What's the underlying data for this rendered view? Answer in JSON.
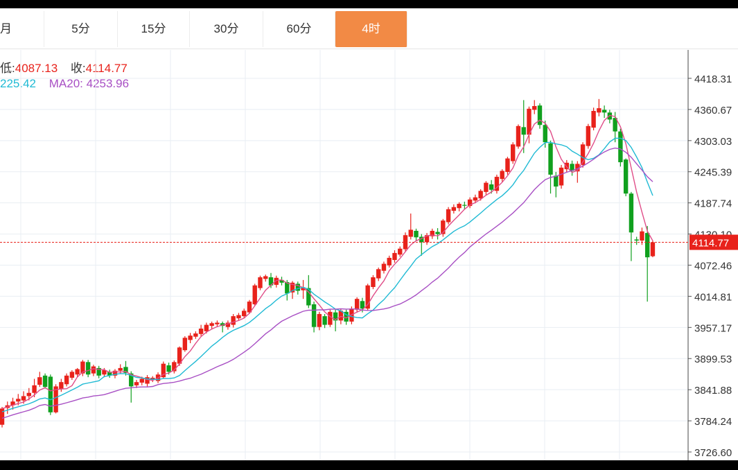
{
  "tabs": [
    {
      "label": "月",
      "active": false
    },
    {
      "label": "5分",
      "active": false
    },
    {
      "label": "15分",
      "active": false
    },
    {
      "label": "30分",
      "active": false
    },
    {
      "label": "60分",
      "active": false
    },
    {
      "label": "4时",
      "active": true
    }
  ],
  "info": {
    "low_label": "低:",
    "low_value": "4087.13",
    "close_label": "收:",
    "close_value": "4114.77",
    "ma10_value_partial": "225.42",
    "ma20_label": "MA20:",
    "ma20_value": "4253.96"
  },
  "colors": {
    "up": "#e8221b",
    "down": "#10a01e",
    "ma5": "#e04d88",
    "ma10": "#1fbad4",
    "ma20": "#a84fc4",
    "grid": "#e8eef3",
    "price_line": "#e8221b",
    "active_tab": "#f28a45"
  },
  "chart_data": {
    "type": "candlestick",
    "y_ticks": [
      "4418.31",
      "4360.67",
      "4303.03",
      "4245.39",
      "4187.74",
      "4130.10",
      "4072.46",
      "4014.81",
      "3957.17",
      "3899.53",
      "3841.88",
      "3784.24",
      "3726.60"
    ],
    "ylim": [
      3726.6,
      4418.31
    ],
    "last_price": "4114.77",
    "grid": true,
    "candles": [
      [
        3777,
        3807,
        3772,
        3810
      ],
      [
        3808,
        3813,
        3797,
        3820
      ],
      [
        3813,
        3820,
        3805,
        3827
      ],
      [
        3820,
        3825,
        3813,
        3834
      ],
      [
        3822,
        3830,
        3816,
        3839
      ],
      [
        3830,
        3836,
        3822,
        3845
      ],
      [
        3836,
        3850,
        3828,
        3862
      ],
      [
        3851,
        3865,
        3847,
        3875
      ],
      [
        3868,
        3847,
        3844,
        3872
      ],
      [
        3866,
        3800,
        3795,
        3870
      ],
      [
        3800,
        3848,
        3798,
        3852
      ],
      [
        3843,
        3856,
        3838,
        3862
      ],
      [
        3852,
        3868,
        3848,
        3872
      ],
      [
        3864,
        3875,
        3860,
        3878
      ],
      [
        3870,
        3880,
        3865,
        3882
      ],
      [
        3872,
        3894,
        3867,
        3897
      ],
      [
        3893,
        3870,
        3865,
        3897
      ],
      [
        3872,
        3885,
        3867,
        3888
      ],
      [
        3882,
        3868,
        3863,
        3886
      ],
      [
        3870,
        3878,
        3865,
        3882
      ],
      [
        3875,
        3868,
        3864,
        3879
      ],
      [
        3868,
        3877,
        3863,
        3880
      ],
      [
        3877,
        3882,
        3872,
        3889
      ],
      [
        3884,
        3873,
        3868,
        3895
      ],
      [
        3872,
        3848,
        3818,
        3876
      ],
      [
        3850,
        3856,
        3845,
        3860
      ],
      [
        3855,
        3862,
        3850,
        3866
      ],
      [
        3853,
        3865,
        3848,
        3869
      ],
      [
        3860,
        3864,
        3856,
        3867
      ],
      [
        3858,
        3870,
        3854,
        3874
      ],
      [
        3865,
        3890,
        3862,
        3894
      ],
      [
        3887,
        3875,
        3870,
        3892
      ],
      [
        3876,
        3893,
        3872,
        3896
      ],
      [
        3890,
        3920,
        3886,
        3922
      ],
      [
        3915,
        3938,
        3912,
        3941
      ],
      [
        3934,
        3942,
        3928,
        3947
      ],
      [
        3940,
        3946,
        3936,
        3950
      ],
      [
        3945,
        3955,
        3940,
        3962
      ],
      [
        3950,
        3962,
        3946,
        3966
      ],
      [
        3960,
        3965,
        3955,
        3968
      ],
      [
        3963,
        3966,
        3958,
        3970
      ],
      [
        3965,
        3960,
        3948,
        3968
      ],
      [
        3958,
        3966,
        3953,
        3970
      ],
      [
        3962,
        3978,
        3957,
        3982
      ],
      [
        3974,
        3980,
        3970,
        3984
      ],
      [
        3978,
        3988,
        3974,
        3992
      ],
      [
        3985,
        4005,
        3982,
        4008
      ],
      [
        4000,
        4035,
        3997,
        4038
      ],
      [
        4030,
        4050,
        4026,
        4053
      ],
      [
        4047,
        4052,
        4042,
        4055
      ],
      [
        4050,
        4035,
        4030,
        4058
      ],
      [
        4036,
        4049,
        4031,
        4053
      ],
      [
        4045,
        4040,
        4035,
        4051
      ],
      [
        4041,
        4020,
        4007,
        4045
      ],
      [
        4022,
        4040,
        4010,
        4043
      ],
      [
        4038,
        4025,
        4018,
        4042
      ],
      [
        4026,
        4030,
        4010,
        4045
      ],
      [
        4030,
        3998,
        3993,
        4054
      ],
      [
        4000,
        3958,
        3948,
        4005
      ],
      [
        3958,
        3982,
        3952,
        3986
      ],
      [
        3978,
        3962,
        3956,
        3982
      ],
      [
        3962,
        3986,
        3958,
        3990
      ],
      [
        3985,
        3970,
        3950,
        3990
      ],
      [
        3970,
        3988,
        3963,
        3992
      ],
      [
        3986,
        3968,
        3962,
        3990
      ],
      [
        3968,
        3992,
        3963,
        3996
      ],
      [
        3990,
        4010,
        3986,
        4013
      ],
      [
        4006,
        3992,
        3985,
        4012
      ],
      [
        3992,
        4035,
        3988,
        4038
      ],
      [
        4032,
        4050,
        4028,
        4054
      ],
      [
        4048,
        4065,
        4043,
        4068
      ],
      [
        4062,
        4075,
        4057,
        4079
      ],
      [
        4072,
        4086,
        4068,
        4090
      ],
      [
        4082,
        4095,
        4077,
        4100
      ],
      [
        4092,
        4103,
        4088,
        4107
      ],
      [
        4102,
        4128,
        4098,
        4133
      ],
      [
        4125,
        4138,
        4120,
        4168
      ],
      [
        4136,
        4124,
        4118,
        4140
      ],
      [
        4125,
        4115,
        4090,
        4130
      ],
      [
        4115,
        4128,
        4110,
        4132
      ],
      [
        4126,
        4136,
        4121,
        4140
      ],
      [
        4134,
        4130,
        4120,
        4141
      ],
      [
        4130,
        4155,
        4125,
        4158
      ],
      [
        4152,
        4176,
        4148,
        4180
      ],
      [
        4173,
        4180,
        4168,
        4185
      ],
      [
        4178,
        4186,
        4172,
        4189
      ],
      [
        4184,
        4183,
        4175,
        4190
      ],
      [
        4182,
        4194,
        4178,
        4198
      ],
      [
        4192,
        4198,
        4187,
        4203
      ],
      [
        4196,
        4210,
        4192,
        4213
      ],
      [
        4208,
        4225,
        4203,
        4228
      ],
      [
        4222,
        4212,
        4205,
        4230
      ],
      [
        4210,
        4236,
        4205,
        4240
      ],
      [
        4232,
        4247,
        4227,
        4250
      ],
      [
        4245,
        4270,
        4240,
        4273
      ],
      [
        4265,
        4296,
        4260,
        4300
      ],
      [
        4292,
        4330,
        4288,
        4333
      ],
      [
        4328,
        4314,
        4280,
        4378
      ],
      [
        4314,
        4362,
        4298,
        4366
      ],
      [
        4360,
        4367,
        4352,
        4378
      ],
      [
        4368,
        4332,
        4325,
        4372
      ],
      [
        4332,
        4300,
        4290,
        4340
      ],
      [
        4298,
        4240,
        4205,
        4303
      ],
      [
        4238,
        4218,
        4198,
        4245
      ],
      [
        4220,
        4253,
        4214,
        4258
      ],
      [
        4250,
        4262,
        4245,
        4267
      ],
      [
        4260,
        4247,
        4238,
        4266
      ],
      [
        4246,
        4260,
        4225,
        4265
      ],
      [
        4258,
        4296,
        4253,
        4300
      ],
      [
        4293,
        4330,
        4288,
        4334
      ],
      [
        4327,
        4358,
        4322,
        4364
      ],
      [
        4355,
        4363,
        4348,
        4380
      ],
      [
        4360,
        4355,
        4345,
        4368
      ],
      [
        4355,
        4342,
        4335,
        4360
      ],
      [
        4345,
        4320,
        4300,
        4356
      ],
      [
        4320,
        4263,
        4255,
        4325
      ],
      [
        4268,
        4205,
        4200,
        4270
      ],
      [
        4205,
        4133,
        4080,
        4208
      ],
      [
        4120,
        4118,
        4110,
        4125
      ],
      [
        4118,
        4135,
        4110,
        4142
      ],
      [
        4132,
        4087,
        4005,
        4145
      ],
      [
        4089,
        4114.77,
        4087.13,
        4118
      ]
    ]
  }
}
